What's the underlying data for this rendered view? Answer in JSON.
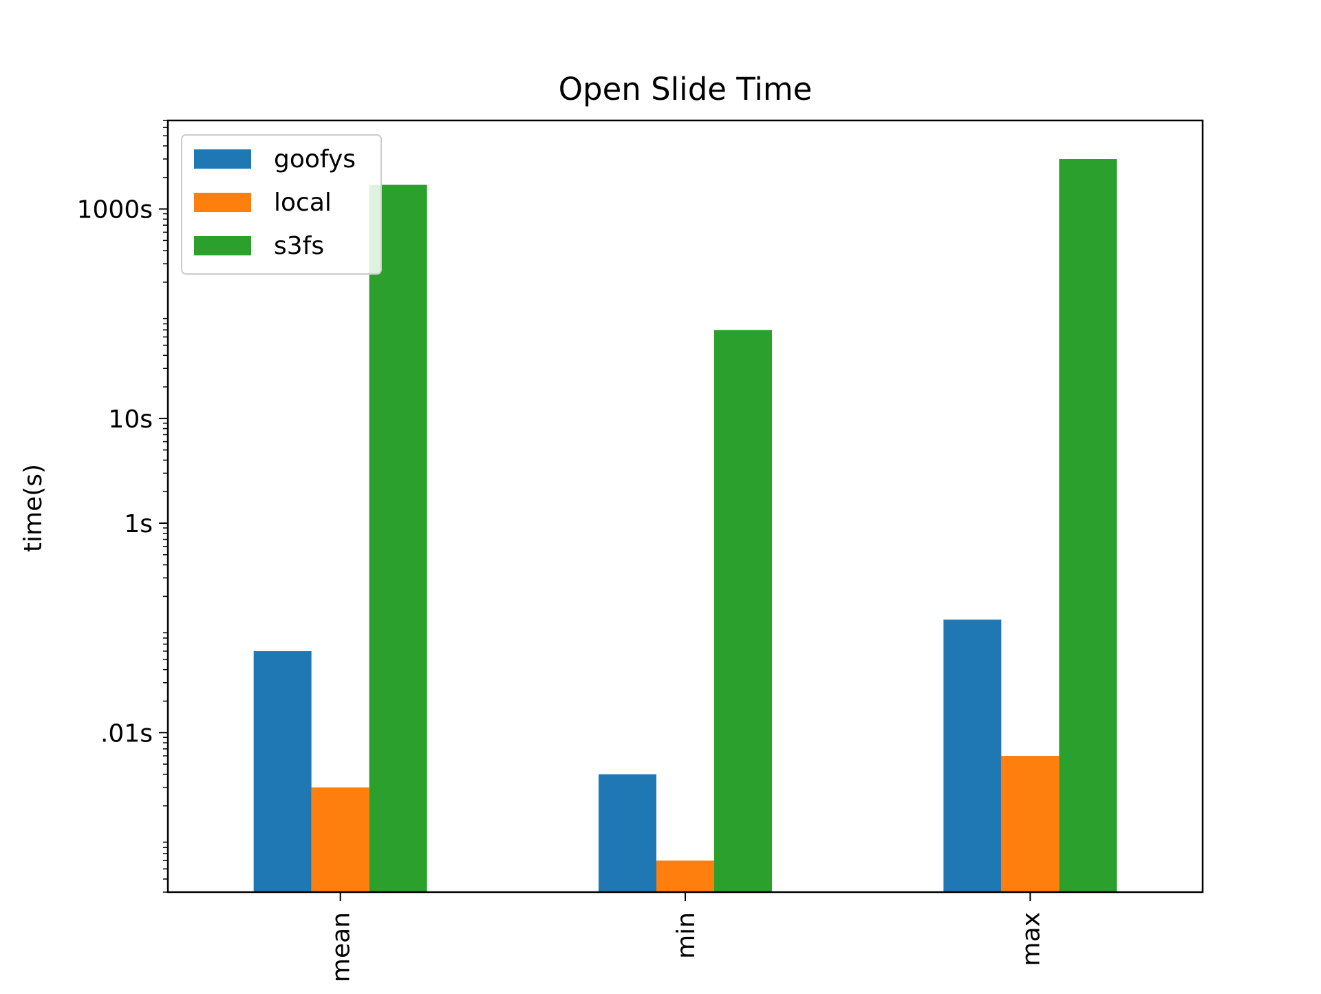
{
  "chart_data": {
    "type": "bar",
    "title": "Open Slide Time",
    "xlabel": "",
    "ylabel": "time(s)",
    "yscale": "log",
    "ylim": [
      0.0003,
      7000
    ],
    "categories": [
      "mean",
      "min",
      "max"
    ],
    "yticks": [
      {
        "value": 0.01,
        "label": ".01s"
      },
      {
        "value": 1,
        "label": "1s"
      },
      {
        "value": 10,
        "label": "10s"
      },
      {
        "value": 1000,
        "label": "1000s"
      }
    ],
    "series": [
      {
        "name": "goofys",
        "color": "#1f77b4",
        "values": [
          0.06,
          0.004,
          0.12
        ]
      },
      {
        "name": "local",
        "color": "#ff7f0e",
        "values": [
          0.003,
          0.0006,
          0.006
        ]
      },
      {
        "name": "s3fs",
        "color": "#2ca02c",
        "values": [
          1700,
          70,
          3000
        ]
      }
    ],
    "legend": "top-left",
    "grid": false
  }
}
